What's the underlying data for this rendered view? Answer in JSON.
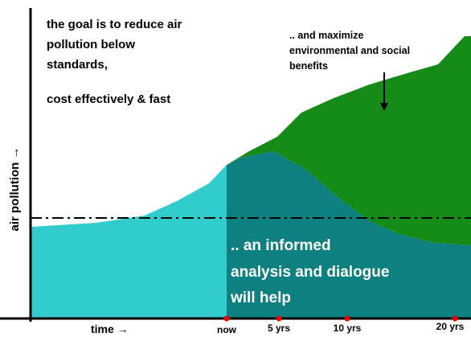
{
  "goal_text": {
    "lines": [
      "the goal is to reduce air",
      "pollution below",
      "standards,",
      "cost effectively & fast"
    ]
  },
  "benefits_text": {
    "lines": [
      ".. and maximize",
      "environmental and social",
      "benefits"
    ]
  },
  "message": {
    "lines": [
      ".. an informed",
      "analysis and dialogue",
      "will help"
    ]
  },
  "axes": {
    "y_label": "air pollution →",
    "x_label": "time →"
  },
  "time_labels": [
    "now",
    "5 yrs",
    "10 yrs",
    "20 yrs"
  ]
}
